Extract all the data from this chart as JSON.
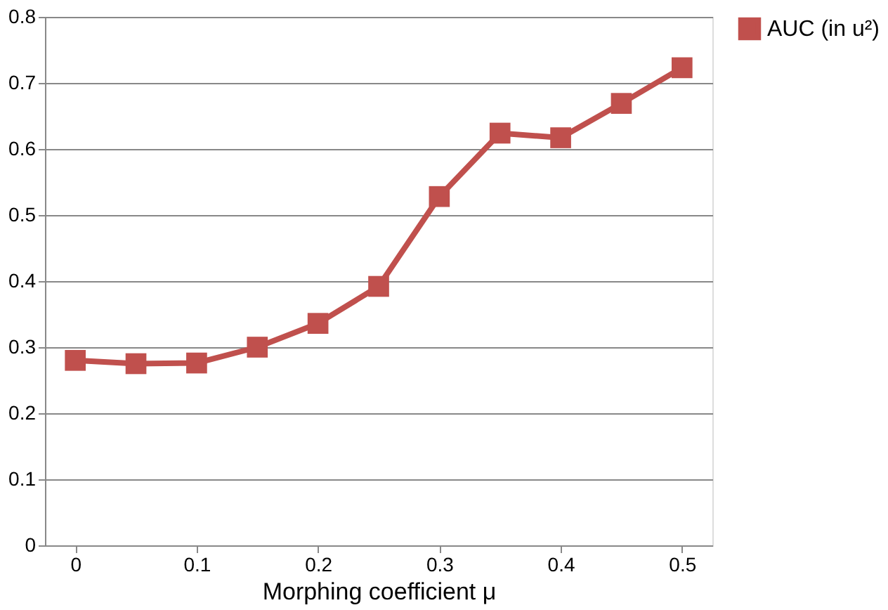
{
  "chart_data": {
    "type": "line",
    "xlabel": "Morphing coefficient μ",
    "x": [
      0,
      0.05,
      0.1,
      0.15,
      0.2,
      0.25,
      0.3,
      0.35,
      0.4,
      0.45,
      0.5
    ],
    "series": [
      {
        "name": "AUC (in u²)",
        "color": "#c0504d",
        "values": [
          0.28,
          0.275,
          0.276,
          0.3,
          0.336,
          0.392,
          0.528,
          0.624,
          0.617,
          0.669,
          0.723
        ]
      }
    ],
    "xlim": [
      -0.025,
      0.525
    ],
    "xticks": [
      0,
      0.1,
      0.2,
      0.3,
      0.4,
      0.5
    ],
    "ylim": [
      0,
      0.8
    ],
    "yticks": [
      0,
      0.1,
      0.2,
      0.3,
      0.4,
      0.5,
      0.6,
      0.7,
      0.8
    ],
    "grid": "y",
    "legend": "right",
    "marker": "square",
    "line_style": "solid"
  }
}
